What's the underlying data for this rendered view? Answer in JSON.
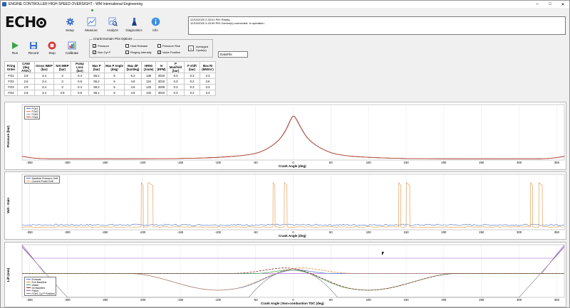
{
  "window": {
    "title": "ENGINE CONTROLLER HIGH SPEED OVERSIGHT - WM International Engineering",
    "minimize": "–",
    "maximize": "□",
    "close": "✕"
  },
  "logo": {
    "text_left": "ECH",
    "text_right": ""
  },
  "nav": [
    {
      "label": "Setup",
      "icon": "gear-icon"
    },
    {
      "label": "Measure",
      "icon": "measure-chart-icon"
    },
    {
      "label": "Analyze",
      "icon": "magnifier-chart-icon"
    },
    {
      "label": "Diagnostics",
      "icon": "flask-icon"
    },
    {
      "label": "Info",
      "icon": "info-icon"
    }
  ],
  "status_log": [
    "12/10/2020 2:33:01 PM: Ready.",
    "12/10/2020 2:43:39 PM: Device(s) connected: In operation."
  ],
  "controls": {
    "run": "Run",
    "record": "Record",
    "stop": "Stop",
    "calibrate": "Calibrate"
  },
  "plot_options": {
    "title": "Crank Domain Plot Options",
    "options": [
      {
        "label": "Pressure",
        "checked": true
      },
      {
        "label": "Non-Cyl P",
        "checked": true
      },
      {
        "label": "Heat Release",
        "checked": false
      },
      {
        "label": "Ringing Intensity",
        "checked": false
      },
      {
        "label": "Pressure Rise",
        "checked": false
      },
      {
        "label": "Valve Position",
        "checked": true
      }
    ],
    "averaged_value": "1",
    "averaged_label": "Averaged Cycle(s)",
    "datafile_value": "DataFile"
  },
  "table": {
    "headers": [
      [
        "Firing",
        "Order"
      ],
      [
        "CA50",
        "(deg ATDC)"
      ],
      [
        "Gross IMEP",
        "(bar)"
      ],
      [
        "Net IMEP",
        "(bar)"
      ],
      [
        "Pump Loss",
        "(bar)"
      ],
      [
        "Max P",
        "(bar)"
      ],
      [
        "Max P Angle",
        "(deg)"
      ],
      [
        "Max dP",
        "(bar/deg)"
      ],
      [
        "HR50",
        "(Joule)"
      ],
      [
        "N",
        "(RPM)"
      ],
      [
        "P Manifold",
        "(bar)"
      ],
      [
        "P shift",
        "(bar)"
      ],
      [
        "Max RI",
        "(MW/m²)"
      ]
    ],
    "rows": [
      [
        "FO1",
        "2.8",
        "3.4",
        "3",
        "0.4",
        "55.2",
        "5",
        "5.3",
        "136",
        "2010",
        "0.3",
        "0.3",
        "4.3"
      ],
      [
        "FO2",
        "2.8",
        "3.4",
        "3",
        "0.5",
        "55.2",
        "5",
        "4.8",
        "134",
        "2010",
        "0.3",
        "0.2",
        "3.6"
      ],
      [
        "FO3",
        "2.9",
        "3.4",
        "3",
        "0.4",
        "55.2",
        "5",
        "4.6",
        "133",
        "2009",
        "0.3",
        "0.3",
        "3.3"
      ],
      [
        "FO4",
        "2.8",
        "3.4",
        "2.9",
        "0.5",
        "55.1",
        "5",
        "4.6",
        "132",
        "2010",
        "0.3",
        "0.2",
        "3.3"
      ]
    ]
  },
  "chart_data": [
    {
      "type": "line",
      "xlabel": "Crank Angle (deg)",
      "ylabel": "Pressure (bar)",
      "xlim": [
        -360,
        360
      ],
      "xticks": [
        -350,
        -300,
        -250,
        -200,
        -150,
        -100,
        -50,
        0,
        50,
        100,
        150,
        200,
        250,
        300,
        350
      ],
      "legend_placement": "top-left",
      "series": [
        {
          "name": "FO#1",
          "color": "#4a74c9"
        },
        {
          "name": "FO#2",
          "color": "#e0893c"
        },
        {
          "name": "FO#3",
          "color": "#9a9a9a"
        },
        {
          "name": "FO#4",
          "color": "#c0392b"
        }
      ],
      "curve": {
        "x": [
          -360,
          -340,
          -300,
          -250,
          -200,
          -150,
          -100,
          -60,
          -40,
          -20,
          -10,
          -5,
          0,
          5,
          10,
          20,
          40,
          60,
          100,
          150,
          200,
          250,
          300,
          340,
          360
        ],
        "y": [
          3,
          1,
          1,
          1,
          1,
          1.2,
          2,
          4,
          7,
          15,
          24,
          31,
          37,
          32,
          26,
          16,
          8,
          4,
          2,
          1.2,
          1,
          1,
          1,
          1,
          3
        ]
      },
      "ylim": [
        0,
        45
      ]
    },
    {
      "type": "line",
      "xlabel": "Crank Angle (deg)",
      "ylabel": "Volt - Gain",
      "xlim": [
        -360,
        360
      ],
      "xticks": [
        -350,
        -300,
        -250,
        -200,
        -150,
        -100,
        -50,
        0,
        50,
        100,
        150,
        200,
        250,
        300,
        350
      ],
      "legend_placement": "top-left",
      "series": [
        {
          "name": "Manifold Pressure Drift",
          "color": "#4a74c9"
        },
        {
          "name": "Current Probe Drift",
          "color": "#e8a15a"
        }
      ],
      "pulses": [
        {
          "start": -202,
          "end": -199
        },
        {
          "start": -193,
          "end": -186
        },
        {
          "start": -27,
          "end": -24
        },
        {
          "start": -12,
          "end": -8
        },
        {
          "start": 140,
          "end": 143
        },
        {
          "start": 150,
          "end": 155
        },
        {
          "start": 315,
          "end": 318
        },
        {
          "start": 326,
          "end": 331
        }
      ],
      "baseline_blue": 0.35,
      "baseline_orange": 0.2,
      "pulse_height": 3.4,
      "ylim": [
        0,
        4
      ]
    },
    {
      "type": "line",
      "xlabel": "Crank Angle | Non-combustion TDC (deg)",
      "ylabel": "Lift (mm)",
      "xlim": [
        -360,
        360
      ],
      "xticks": [
        -350,
        -300,
        -250,
        -200,
        -150,
        -100,
        -50,
        0,
        50,
        100,
        150,
        200,
        250,
        300,
        350
      ],
      "legend_placement": "bottom-left",
      "ylim": [
        -10,
        12
      ],
      "series": [
        {
          "name": "Exhaust",
          "color": "#4a74c9"
        },
        {
          "name": "Exh Baseline",
          "color": "#e0893c"
        },
        {
          "name": "Intake",
          "color": "#3aa34a"
        },
        {
          "name": "Int Baseline",
          "color": "#8b2a2a"
        },
        {
          "name": "Piston",
          "color": "#9b4fc9"
        },
        {
          "name": "FO#1 Cyl P Position",
          "color": "#7a7a7a"
        }
      ]
    }
  ]
}
